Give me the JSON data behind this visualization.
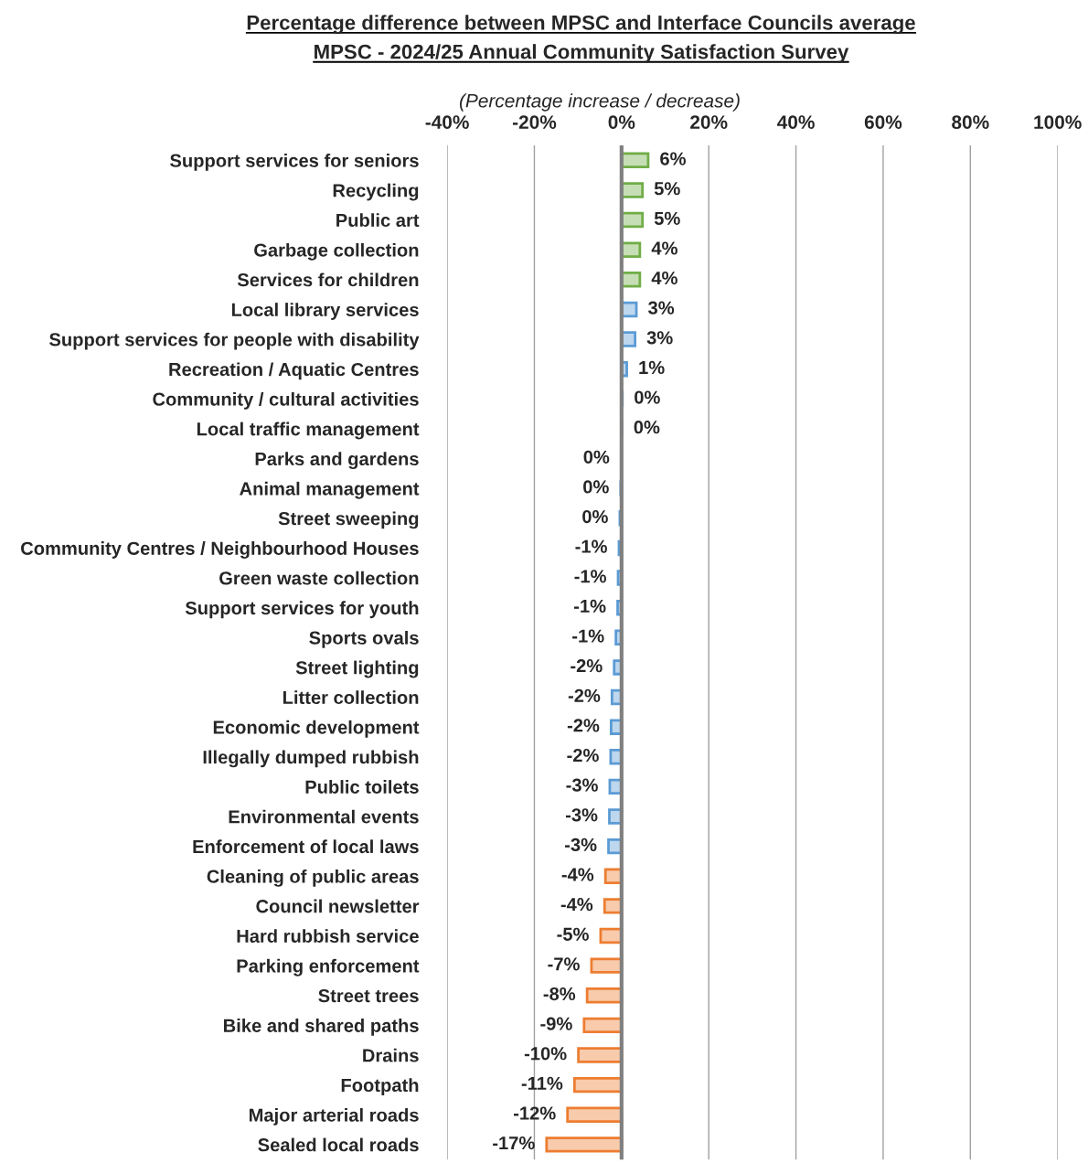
{
  "chart_data": {
    "type": "bar",
    "orientation": "horizontal",
    "title": "Percentage difference between MPSC and Interface Councils average",
    "subtitle": "MPSC - 2024/25 Annual Community Satisfaction Survey",
    "xlabel": "(Percentage increase / decrease)",
    "categories": [
      "Support services for seniors",
      "Recycling",
      "Public art",
      "Garbage collection",
      "Services for children",
      "Local library services",
      "Support services for people with disability",
      "Recreation / Aquatic Centres",
      "Community / cultural activities",
      "Local traffic management",
      "Parks and gardens",
      "Animal management",
      "Street sweeping",
      "Community Centres / Neighbourhood Houses",
      "Green waste collection",
      "Support services for youth",
      "Sports ovals",
      "Street lighting",
      "Litter collection",
      "Economic development",
      "Illegally dumped rubbish",
      "Public toilets",
      "Environmental events",
      "Enforcement of local laws",
      "Cleaning of public areas",
      "Council newsletter",
      "Hard rubbish service",
      "Parking enforcement",
      "Street trees",
      "Bike and shared paths",
      "Drains",
      "Footpath",
      "Major arterial roads",
      "Sealed local roads"
    ],
    "values": [
      6.1,
      4.8,
      4.8,
      4.2,
      4.2,
      3.4,
      3.1,
      1.2,
      0.2,
      0.1,
      -0.1,
      -0.2,
      -0.4,
      -0.6,
      -0.8,
      -0.9,
      -1.3,
      -1.7,
      -2.2,
      -2.4,
      -2.5,
      -2.7,
      -2.8,
      -3.0,
      -3.7,
      -3.9,
      -4.8,
      -6.9,
      -7.9,
      -8.6,
      -9.9,
      -10.8,
      -12.4,
      -17.2
    ],
    "value_labels": [
      "6%",
      "5%",
      "5%",
      "4%",
      "4%",
      "3%",
      "3%",
      "1%",
      "0%",
      "0%",
      "0%",
      "0%",
      "0%",
      "-1%",
      "-1%",
      "-1%",
      "-1%",
      "-2%",
      "-2%",
      "-2%",
      "-2%",
      "-3%",
      "-3%",
      "-3%",
      "-4%",
      "-4%",
      "-5%",
      "-7%",
      "-8%",
      "-9%",
      "-10%",
      "-11%",
      "-12%",
      "-17%"
    ],
    "colors": [
      "#70ad47",
      "#70ad47",
      "#70ad47",
      "#70ad47",
      "#70ad47",
      "#5b9bd5",
      "#5b9bd5",
      "#5b9bd5",
      "#5b9bd5",
      "#5b9bd5",
      "#5b9bd5",
      "#5b9bd5",
      "#5b9bd5",
      "#5b9bd5",
      "#5b9bd5",
      "#5b9bd5",
      "#5b9bd5",
      "#5b9bd5",
      "#5b9bd5",
      "#5b9bd5",
      "#5b9bd5",
      "#5b9bd5",
      "#5b9bd5",
      "#5b9bd5",
      "#ed7d31",
      "#ed7d31",
      "#ed7d31",
      "#ed7d31",
      "#ed7d31",
      "#ed7d31",
      "#ed7d31",
      "#ed7d31",
      "#ed7d31",
      "#ed7d31"
    ],
    "xlim": [
      -40,
      100
    ],
    "xticks": [
      {
        "value": -40,
        "label": "-40%"
      },
      {
        "value": -20,
        "label": "-20%"
      },
      {
        "value": 0,
        "label": "0%"
      },
      {
        "value": 20,
        "label": "20%"
      },
      {
        "value": 40,
        "label": "40%"
      },
      {
        "value": 60,
        "label": "60%"
      },
      {
        "value": 80,
        "label": "80%"
      },
      {
        "value": 100,
        "label": "100%"
      }
    ],
    "grid": "x",
    "legend": false
  }
}
